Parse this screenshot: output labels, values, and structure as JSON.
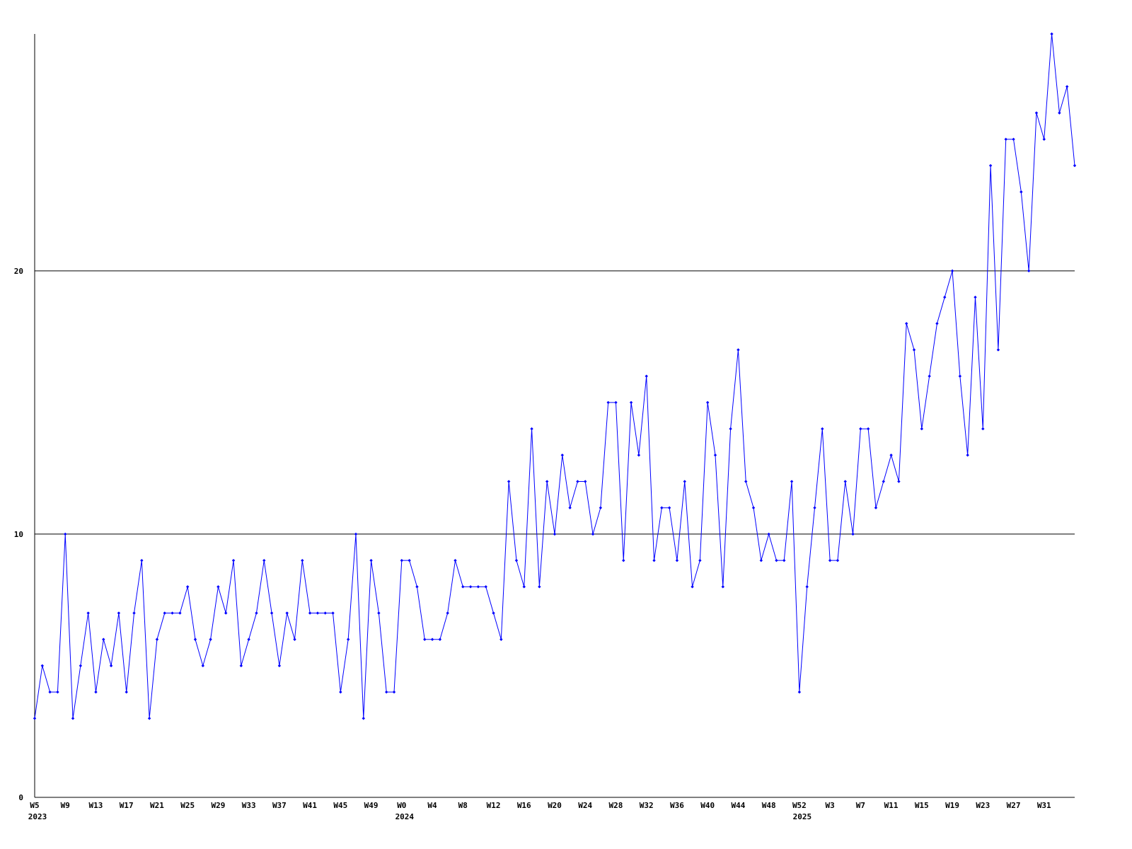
{
  "chart_data": {
    "type": "line",
    "color": "#0000ff",
    "marker": "diamond",
    "ylim": [
      0,
      29
    ],
    "yticks": [
      0,
      10,
      20
    ],
    "grid": true,
    "categories": [
      [
        "W5",
        "2023"
      ],
      null,
      null,
      null,
      "W9",
      null,
      null,
      null,
      "W13",
      null,
      null,
      null,
      "W17",
      null,
      null,
      null,
      "W21",
      null,
      null,
      null,
      "W25",
      null,
      null,
      null,
      "W29",
      null,
      null,
      null,
      "W33",
      null,
      null,
      null,
      "W37",
      null,
      null,
      null,
      "W41",
      null,
      null,
      null,
      "W45",
      null,
      null,
      null,
      "W49",
      null,
      null,
      null,
      [
        "W0",
        "2024"
      ],
      null,
      null,
      null,
      "W4",
      null,
      null,
      null,
      "W8",
      null,
      null,
      null,
      "W12",
      null,
      null,
      null,
      "W16",
      null,
      null,
      null,
      "W20",
      null,
      null,
      null,
      "W24",
      null,
      null,
      null,
      "W28",
      null,
      null,
      null,
      "W32",
      null,
      null,
      null,
      "W36",
      null,
      null,
      null,
      "W40",
      null,
      null,
      null,
      "W44",
      null,
      null,
      null,
      "W48",
      null,
      null,
      null,
      [
        "W52",
        "2025"
      ],
      null,
      null,
      null,
      "W3",
      null,
      null,
      null,
      "W7",
      null,
      null,
      null,
      "W11",
      null,
      null,
      null,
      "W15",
      null,
      null,
      null,
      "W19",
      null,
      null,
      null,
      "W23",
      null,
      null,
      null,
      "W27",
      null,
      null,
      null,
      "W31",
      null,
      null,
      null,
      null
    ],
    "values": [
      3,
      5,
      4,
      4,
      10,
      3,
      5,
      7,
      4,
      6,
      5,
      7,
      4,
      7,
      9,
      3,
      6,
      7,
      7,
      7,
      8,
      6,
      5,
      6,
      8,
      7,
      9,
      5,
      6,
      7,
      9,
      7,
      5,
      7,
      6,
      9,
      7,
      7,
      7,
      7,
      4,
      6,
      10,
      3,
      9,
      7,
      4,
      4,
      9,
      9,
      8,
      6,
      6,
      6,
      7,
      9,
      8,
      8,
      8,
      8,
      7,
      6,
      12,
      9,
      8,
      14,
      8,
      12,
      10,
      13,
      11,
      12,
      12,
      10,
      11,
      15,
      15,
      9,
      15,
      13,
      16,
      9,
      11,
      11,
      9,
      12,
      8,
      9,
      15,
      13,
      8,
      14,
      17,
      12,
      11,
      9,
      10,
      9,
      9,
      12,
      4,
      8,
      11,
      14,
      9,
      9,
      12,
      10,
      14,
      14,
      11,
      12,
      13,
      12,
      18,
      17,
      14,
      16,
      18,
      19,
      20,
      16,
      13,
      19,
      14,
      24,
      17,
      25,
      25,
      23,
      20,
      26,
      25,
      29,
      26,
      27,
      24
    ]
  }
}
